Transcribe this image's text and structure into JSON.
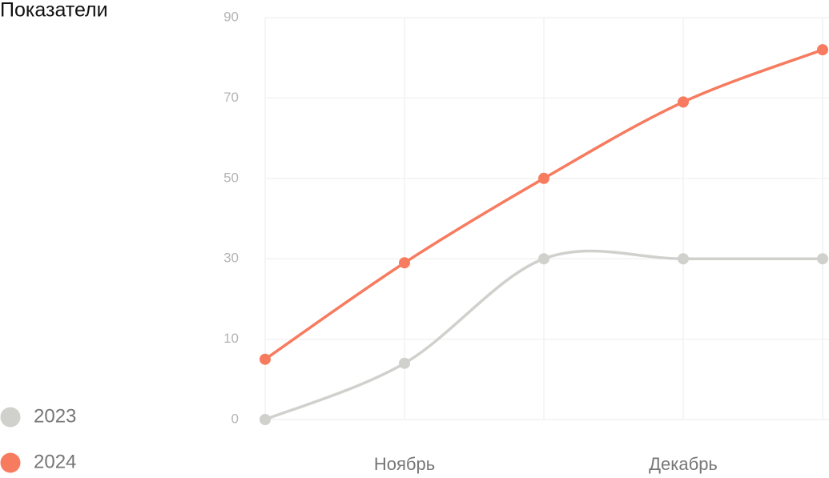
{
  "chart_data": {
    "type": "line",
    "title": "Показатели",
    "categories": [
      null,
      "Ноябрь",
      null,
      "Декабрь",
      null
    ],
    "series": [
      {
        "name": "2023",
        "color": "#d0d0cc",
        "values": [
          0,
          7,
          30,
          30,
          30
        ]
      },
      {
        "name": "2024",
        "color": "#f77b5f",
        "values": [
          7.5,
          29,
          50,
          69,
          82
        ]
      }
    ],
    "ylim": [
      0,
      90
    ],
    "yticks": [
      0,
      10,
      30,
      50,
      70,
      90
    ],
    "grid": true,
    "smooth": true,
    "legend": "bottom-left"
  }
}
